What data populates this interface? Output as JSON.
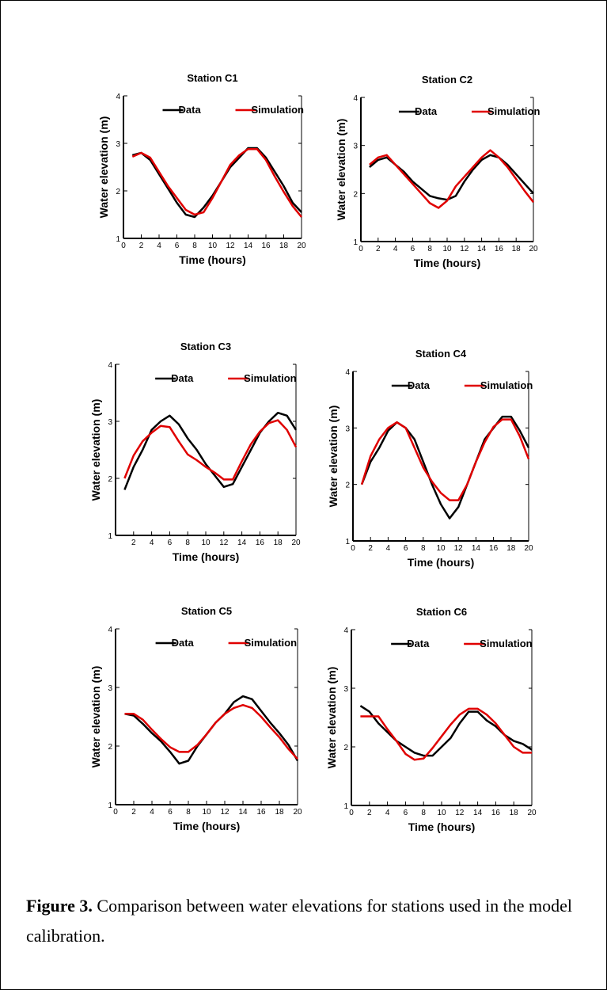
{
  "figure": {
    "caption_label": "Figure 3.",
    "caption_text": " Comparison between water elevations for stations used in the model calibration."
  },
  "colors": {
    "data": "#000000",
    "simulation": "#e00000"
  },
  "chart_data": [
    {
      "type": "line",
      "title": "Station C1",
      "xlabel": "Time (hours)",
      "ylabel": "Water elevation (m)",
      "xlim": [
        0,
        20
      ],
      "ylim": [
        1,
        4
      ],
      "xticks": [
        0,
        2,
        4,
        6,
        8,
        10,
        12,
        14,
        16,
        18,
        20
      ],
      "yticks": [
        1,
        2,
        3,
        4
      ],
      "legend": "top",
      "series": [
        {
          "name": "Data",
          "x": [
            1,
            2,
            3,
            4,
            5,
            6,
            7,
            8,
            9,
            10,
            11,
            12,
            13,
            14,
            15,
            16,
            17,
            18,
            19,
            20
          ],
          "y": [
            2.75,
            2.8,
            2.65,
            2.35,
            2.05,
            1.75,
            1.5,
            1.45,
            1.65,
            1.9,
            2.2,
            2.5,
            2.7,
            2.9,
            2.9,
            2.7,
            2.4,
            2.1,
            1.75,
            1.55
          ]
        },
        {
          "name": "Simulation",
          "x": [
            1,
            2,
            3,
            4,
            5,
            6,
            7,
            8,
            9,
            10,
            11,
            12,
            13,
            14,
            15,
            16,
            17,
            18,
            19,
            20
          ],
          "y": [
            2.72,
            2.8,
            2.7,
            2.4,
            2.1,
            1.85,
            1.6,
            1.5,
            1.55,
            1.85,
            2.2,
            2.55,
            2.75,
            2.88,
            2.88,
            2.65,
            2.3,
            1.98,
            1.68,
            1.45
          ]
        }
      ]
    },
    {
      "type": "line",
      "title": "Station C2",
      "xlabel": "Time (hours)",
      "ylabel": "Water elevation (m)",
      "xlim": [
        0,
        20
      ],
      "ylim": [
        1,
        4
      ],
      "xticks": [
        0,
        2,
        4,
        6,
        8,
        10,
        12,
        14,
        16,
        18,
        20
      ],
      "yticks": [
        1,
        2,
        3,
        4
      ],
      "legend": "top",
      "series": [
        {
          "name": "Data",
          "x": [
            1,
            2,
            3,
            4,
            5,
            6,
            7,
            8,
            9,
            10,
            11,
            12,
            13,
            14,
            15,
            16,
            17,
            18,
            19,
            20
          ],
          "y": [
            2.55,
            2.7,
            2.75,
            2.6,
            2.45,
            2.25,
            2.1,
            1.95,
            1.9,
            1.87,
            1.95,
            2.25,
            2.5,
            2.7,
            2.8,
            2.75,
            2.6,
            2.4,
            2.2,
            2.0
          ]
        },
        {
          "name": "Simulation",
          "x": [
            1,
            2,
            3,
            4,
            5,
            6,
            7,
            8,
            9,
            10,
            11,
            12,
            13,
            14,
            15,
            16,
            17,
            18,
            19,
            20
          ],
          "y": [
            2.6,
            2.75,
            2.8,
            2.6,
            2.4,
            2.2,
            2.0,
            1.8,
            1.7,
            1.85,
            2.15,
            2.35,
            2.55,
            2.75,
            2.9,
            2.75,
            2.55,
            2.3,
            2.05,
            1.82
          ]
        }
      ]
    },
    {
      "type": "line",
      "title": "Station C3",
      "xlabel": "Time (hours)",
      "ylabel": "Water elevation (m)",
      "xlim": [
        0,
        20
      ],
      "ylim": [
        1,
        4
      ],
      "xticks": [
        2,
        4,
        6,
        8,
        10,
        12,
        14,
        16,
        18,
        20
      ],
      "yticks": [
        1,
        2,
        3,
        4
      ],
      "legend": "top",
      "series": [
        {
          "name": "Data",
          "x": [
            1,
            2,
            3,
            4,
            5,
            6,
            7,
            8,
            9,
            10,
            11,
            12,
            13,
            14,
            15,
            16,
            17,
            18,
            19,
            20
          ],
          "y": [
            1.8,
            2.2,
            2.5,
            2.85,
            3.0,
            3.1,
            2.95,
            2.7,
            2.5,
            2.25,
            2.05,
            1.85,
            1.9,
            2.2,
            2.5,
            2.8,
            3.0,
            3.15,
            3.1,
            2.85
          ]
        },
        {
          "name": "Simulation",
          "x": [
            1,
            2,
            3,
            4,
            5,
            6,
            7,
            8,
            9,
            10,
            11,
            12,
            13,
            14,
            15,
            16,
            17,
            18,
            19,
            20
          ],
          "y": [
            2.0,
            2.4,
            2.65,
            2.8,
            2.92,
            2.9,
            2.65,
            2.42,
            2.32,
            2.2,
            2.1,
            1.98,
            1.98,
            2.3,
            2.6,
            2.82,
            2.97,
            3.02,
            2.85,
            2.55
          ]
        }
      ]
    },
    {
      "type": "line",
      "title": "Station C4",
      "xlabel": "Time (hours)",
      "ylabel": "Water elevation (m)",
      "xlim": [
        0,
        20
      ],
      "ylim": [
        1,
        4
      ],
      "xticks": [
        0,
        2,
        4,
        6,
        8,
        10,
        12,
        14,
        16,
        18,
        20
      ],
      "yticks": [
        1,
        2,
        3,
        4
      ],
      "legend": "top",
      "series": [
        {
          "name": "Data",
          "x": [
            1,
            2,
            3,
            4,
            5,
            6,
            7,
            8,
            9,
            10,
            11,
            12,
            13,
            14,
            15,
            16,
            17,
            18,
            19,
            20
          ],
          "y": [
            2.0,
            2.4,
            2.65,
            2.95,
            3.1,
            3.0,
            2.8,
            2.4,
            2.0,
            1.65,
            1.4,
            1.6,
            2.0,
            2.4,
            2.8,
            3.0,
            3.2,
            3.2,
            2.95,
            2.65
          ]
        },
        {
          "name": "Simulation",
          "x": [
            1,
            2,
            3,
            4,
            5,
            6,
            7,
            8,
            9,
            10,
            11,
            12,
            13,
            14,
            15,
            16,
            17,
            18,
            19,
            20
          ],
          "y": [
            2.0,
            2.5,
            2.8,
            3.0,
            3.1,
            3.0,
            2.65,
            2.3,
            2.05,
            1.85,
            1.72,
            1.72,
            2.0,
            2.4,
            2.75,
            3.02,
            3.15,
            3.15,
            2.85,
            2.45
          ]
        }
      ]
    },
    {
      "type": "line",
      "title": "Station C5",
      "xlabel": "Time (hours)",
      "ylabel": "Water elevation (m)",
      "xlim": [
        0,
        20
      ],
      "ylim": [
        1,
        4
      ],
      "xticks": [
        0,
        2,
        4,
        6,
        8,
        10,
        12,
        14,
        16,
        18,
        20
      ],
      "yticks": [
        1,
        2,
        3,
        4
      ],
      "legend": "top",
      "series": [
        {
          "name": "Data",
          "x": [
            1,
            2,
            3,
            4,
            5,
            6,
            7,
            8,
            9,
            10,
            11,
            12,
            13,
            14,
            15,
            16,
            17,
            18,
            19,
            20
          ],
          "y": [
            2.55,
            2.52,
            2.38,
            2.22,
            2.08,
            1.9,
            1.7,
            1.75,
            2.0,
            2.2,
            2.4,
            2.55,
            2.75,
            2.85,
            2.8,
            2.6,
            2.4,
            2.22,
            2.02,
            1.75
          ]
        },
        {
          "name": "Simulation",
          "x": [
            1,
            2,
            3,
            4,
            5,
            6,
            7,
            8,
            9,
            10,
            11,
            12,
            13,
            14,
            15,
            16,
            17,
            18,
            19,
            20
          ],
          "y": [
            2.55,
            2.55,
            2.45,
            2.28,
            2.12,
            1.98,
            1.9,
            1.9,
            2.02,
            2.2,
            2.4,
            2.55,
            2.65,
            2.7,
            2.65,
            2.5,
            2.32,
            2.15,
            1.95,
            1.78
          ]
        }
      ]
    },
    {
      "type": "line",
      "title": "Station C6",
      "xlabel": "Time (hours)",
      "ylabel": "Water elevation (m)",
      "xlim": [
        0,
        20
      ],
      "ylim": [
        1,
        4
      ],
      "xticks": [
        0,
        2,
        4,
        6,
        8,
        10,
        12,
        14,
        16,
        18,
        20
      ],
      "yticks": [
        1,
        2,
        3,
        4
      ],
      "legend": "top",
      "series": [
        {
          "name": "Data",
          "x": [
            1,
            2,
            3,
            4,
            5,
            6,
            7,
            8,
            9,
            10,
            11,
            12,
            13,
            14,
            15,
            16,
            17,
            18,
            19,
            20
          ],
          "y": [
            2.7,
            2.6,
            2.4,
            2.25,
            2.1,
            2.0,
            1.9,
            1.85,
            1.85,
            2.0,
            2.15,
            2.4,
            2.6,
            2.6,
            2.45,
            2.35,
            2.2,
            2.1,
            2.05,
            1.95
          ]
        },
        {
          "name": "Simulation",
          "x": [
            1,
            2,
            3,
            4,
            5,
            6,
            7,
            8,
            9,
            10,
            11,
            12,
            13,
            14,
            15,
            16,
            17,
            18,
            19,
            20
          ],
          "y": [
            2.52,
            2.52,
            2.52,
            2.3,
            2.1,
            1.88,
            1.78,
            1.8,
            1.98,
            2.18,
            2.38,
            2.55,
            2.65,
            2.65,
            2.55,
            2.4,
            2.2,
            2.0,
            1.9,
            1.9
          ]
        }
      ]
    }
  ]
}
